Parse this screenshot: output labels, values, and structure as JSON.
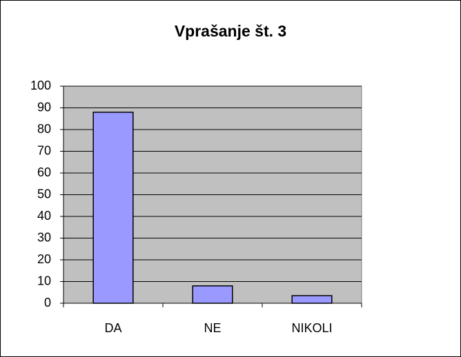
{
  "chart_data": {
    "type": "bar",
    "title": "Vprašanje št. 3",
    "categories": [
      "DA",
      "NE",
      "NIKOLI"
    ],
    "values": [
      88,
      8,
      3.5
    ],
    "color": "#9999ff",
    "ylim": [
      0,
      100
    ],
    "yticks": [
      0,
      10,
      20,
      30,
      40,
      50,
      60,
      70,
      80,
      90,
      100
    ],
    "grid": true
  }
}
